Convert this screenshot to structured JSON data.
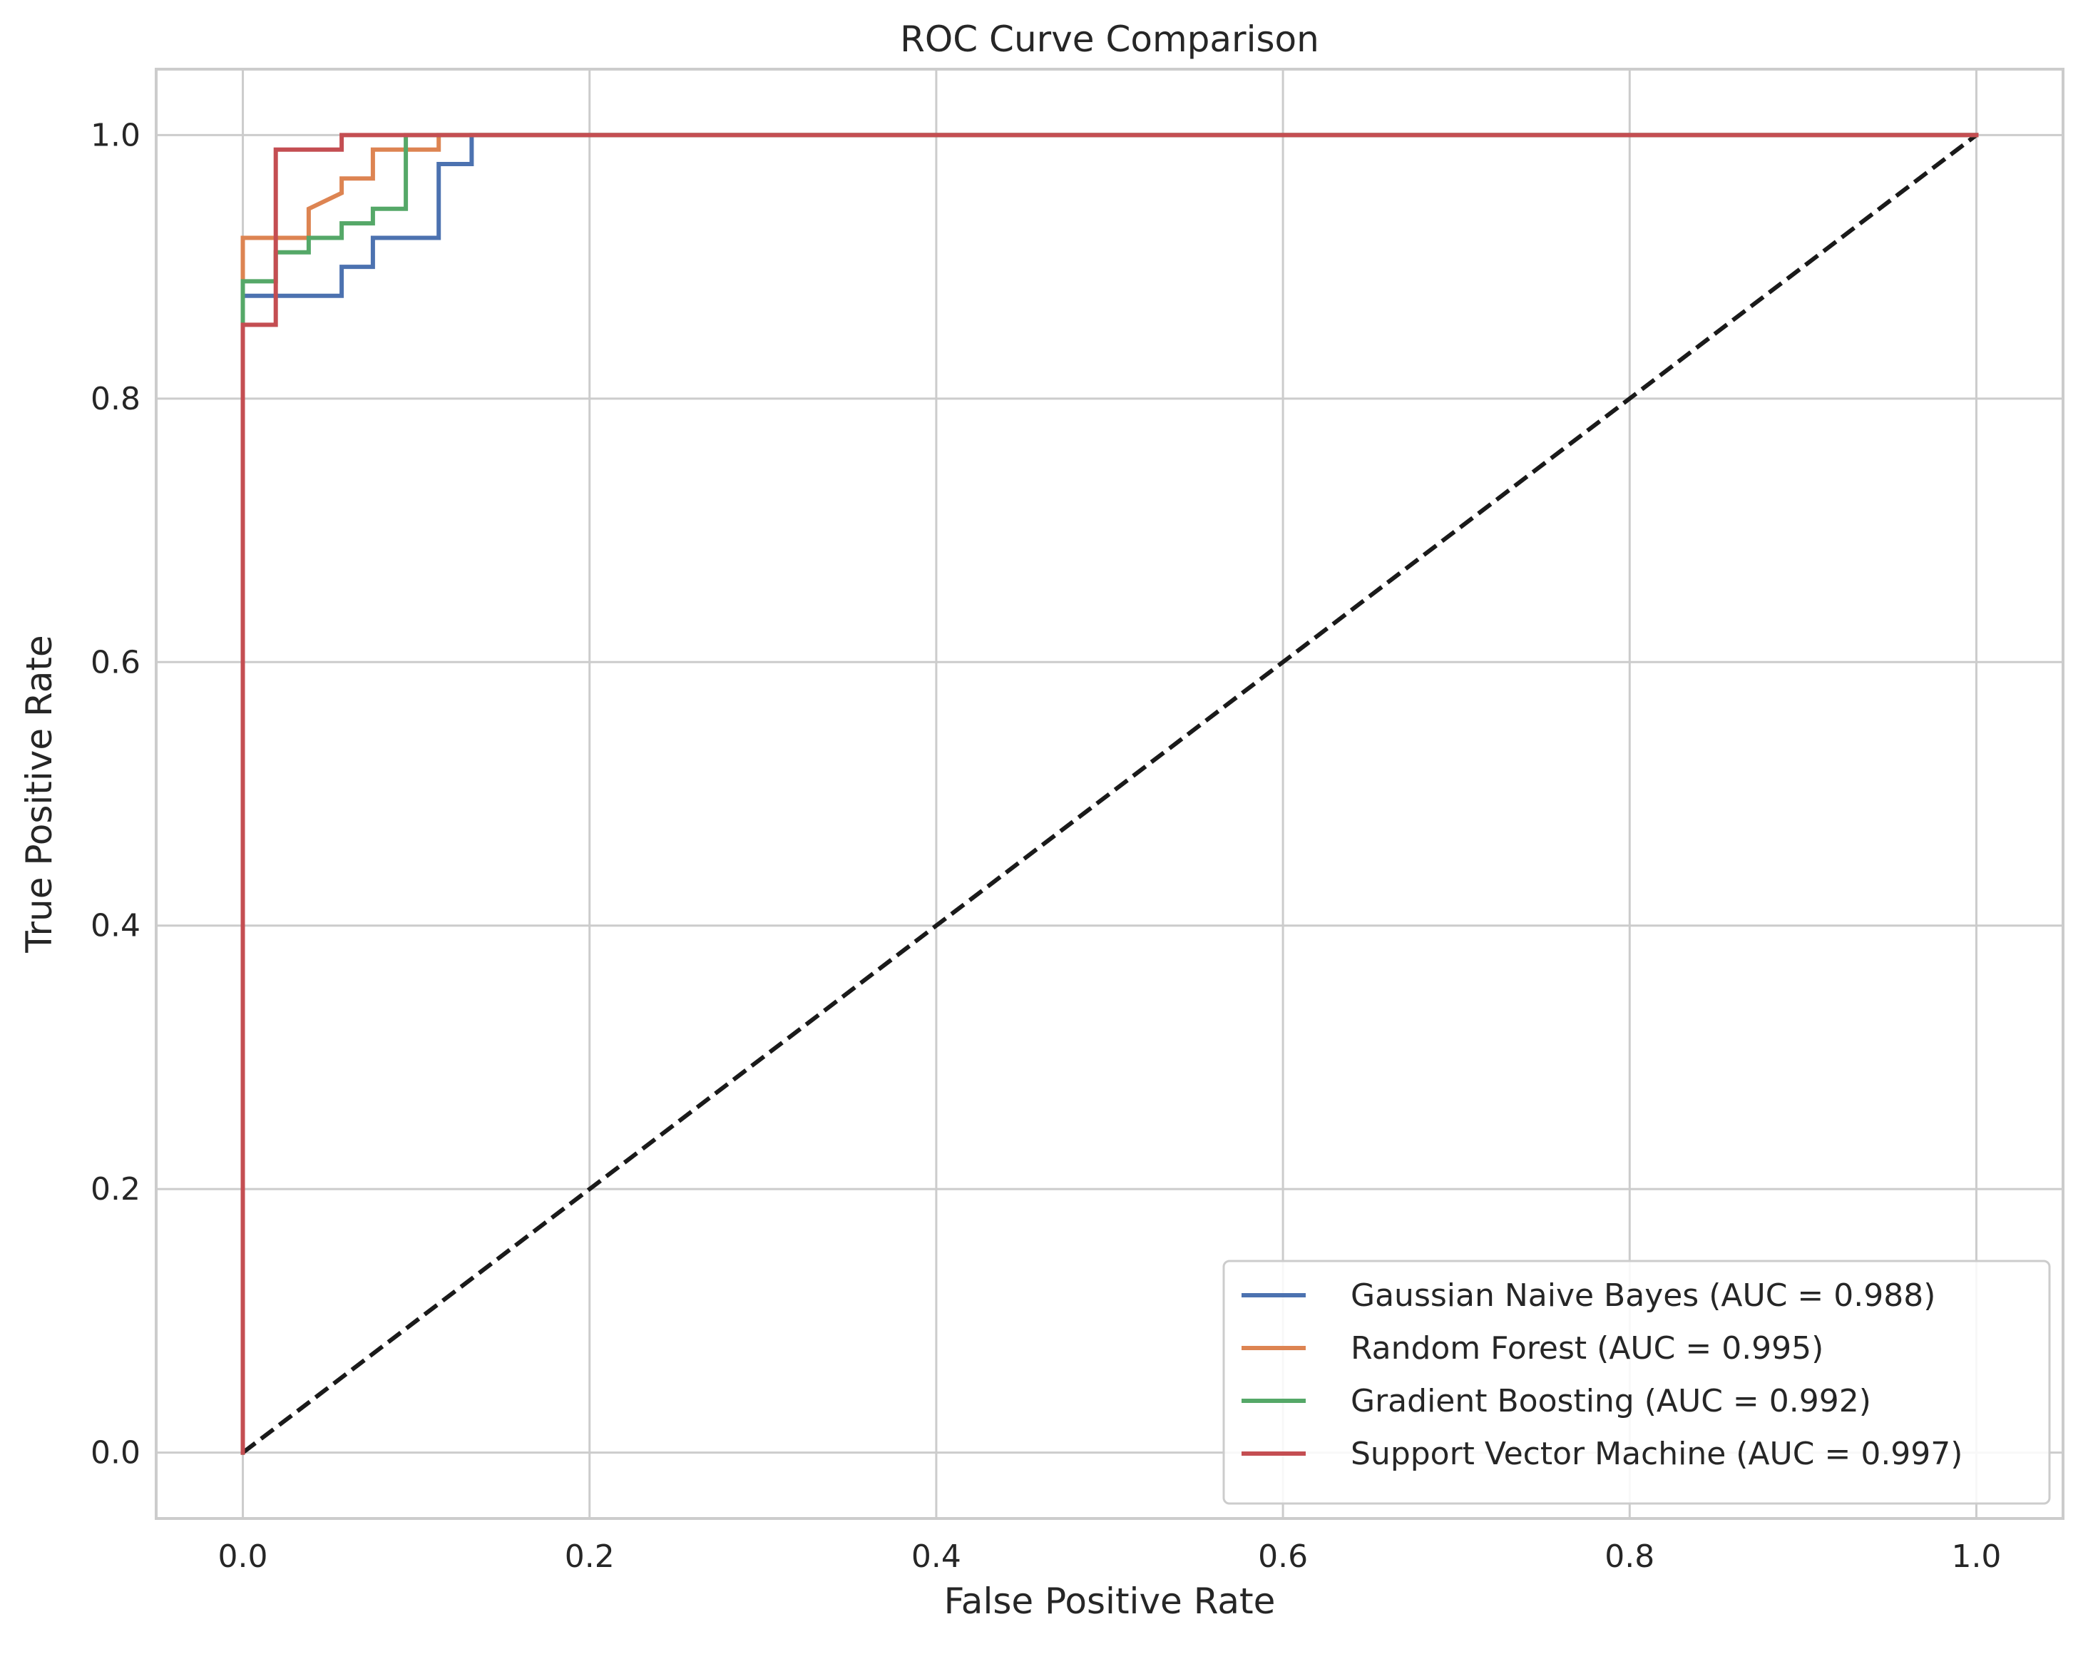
{
  "chart_data": {
    "type": "line",
    "title": "ROC Curve Comparison",
    "xlabel": "False Positive Rate",
    "ylabel": "True Positive Rate",
    "xlim": [
      -0.05,
      1.05
    ],
    "ylim": [
      -0.05,
      1.05
    ],
    "xticks": [
      0.0,
      0.2,
      0.4,
      0.6,
      0.8,
      1.0
    ],
    "xtick_labels": [
      "0.0",
      "0.2",
      "0.4",
      "0.6",
      "0.8",
      "1.0"
    ],
    "yticks": [
      0.0,
      0.2,
      0.4,
      0.6,
      0.8,
      1.0
    ],
    "ytick_labels": [
      "0.0",
      "0.2",
      "0.4",
      "0.6",
      "0.8",
      "1.0"
    ],
    "grid": true,
    "legend_position": "lower-right",
    "series": [
      {
        "name": "Gaussian Naive Bayes (AUC = 0.988)",
        "color": "#4c72b0",
        "x": [
          0.0,
          0.0,
          0.0,
          0.057,
          0.057,
          0.075,
          0.075,
          0.113,
          0.113,
          0.132,
          0.132,
          1.0
        ],
        "y": [
          0.0,
          0.867,
          0.878,
          0.878,
          0.9,
          0.9,
          0.922,
          0.922,
          0.978,
          0.978,
          1.0,
          1.0
        ]
      },
      {
        "name": "Random Forest (AUC = 0.995)",
        "color": "#dd8452",
        "x": [
          0.0,
          0.0,
          0.0,
          0.038,
          0.038,
          0.057,
          0.057,
          0.075,
          0.075,
          0.113,
          0.113,
          1.0
        ],
        "y": [
          0.0,
          0.89,
          0.922,
          0.922,
          0.944,
          0.956,
          0.967,
          0.967,
          0.989,
          0.989,
          1.0,
          1.0
        ]
      },
      {
        "name": "Gradient Boosting (AUC = 0.992)",
        "color": "#55a868",
        "x": [
          0.0,
          0.0,
          0.0,
          0.019,
          0.019,
          0.038,
          0.038,
          0.057,
          0.057,
          0.075,
          0.075,
          0.094,
          0.094,
          1.0
        ],
        "y": [
          0.0,
          0.856,
          0.889,
          0.889,
          0.911,
          0.911,
          0.922,
          0.922,
          0.933,
          0.933,
          0.944,
          0.944,
          1.0,
          1.0
        ]
      },
      {
        "name": "Support Vector Machine (AUC = 0.997)",
        "color": "#c44e52",
        "x": [
          0.0,
          0.0,
          0.019,
          0.019,
          0.057,
          0.057,
          1.0
        ],
        "y": [
          0.0,
          0.856,
          0.856,
          0.989,
          0.989,
          1.0,
          1.0
        ]
      }
    ],
    "reference_line": {
      "color": "#1a1a1a",
      "style": "dashed",
      "x": [
        0.0,
        1.0
      ],
      "y": [
        0.0,
        1.0
      ]
    }
  }
}
